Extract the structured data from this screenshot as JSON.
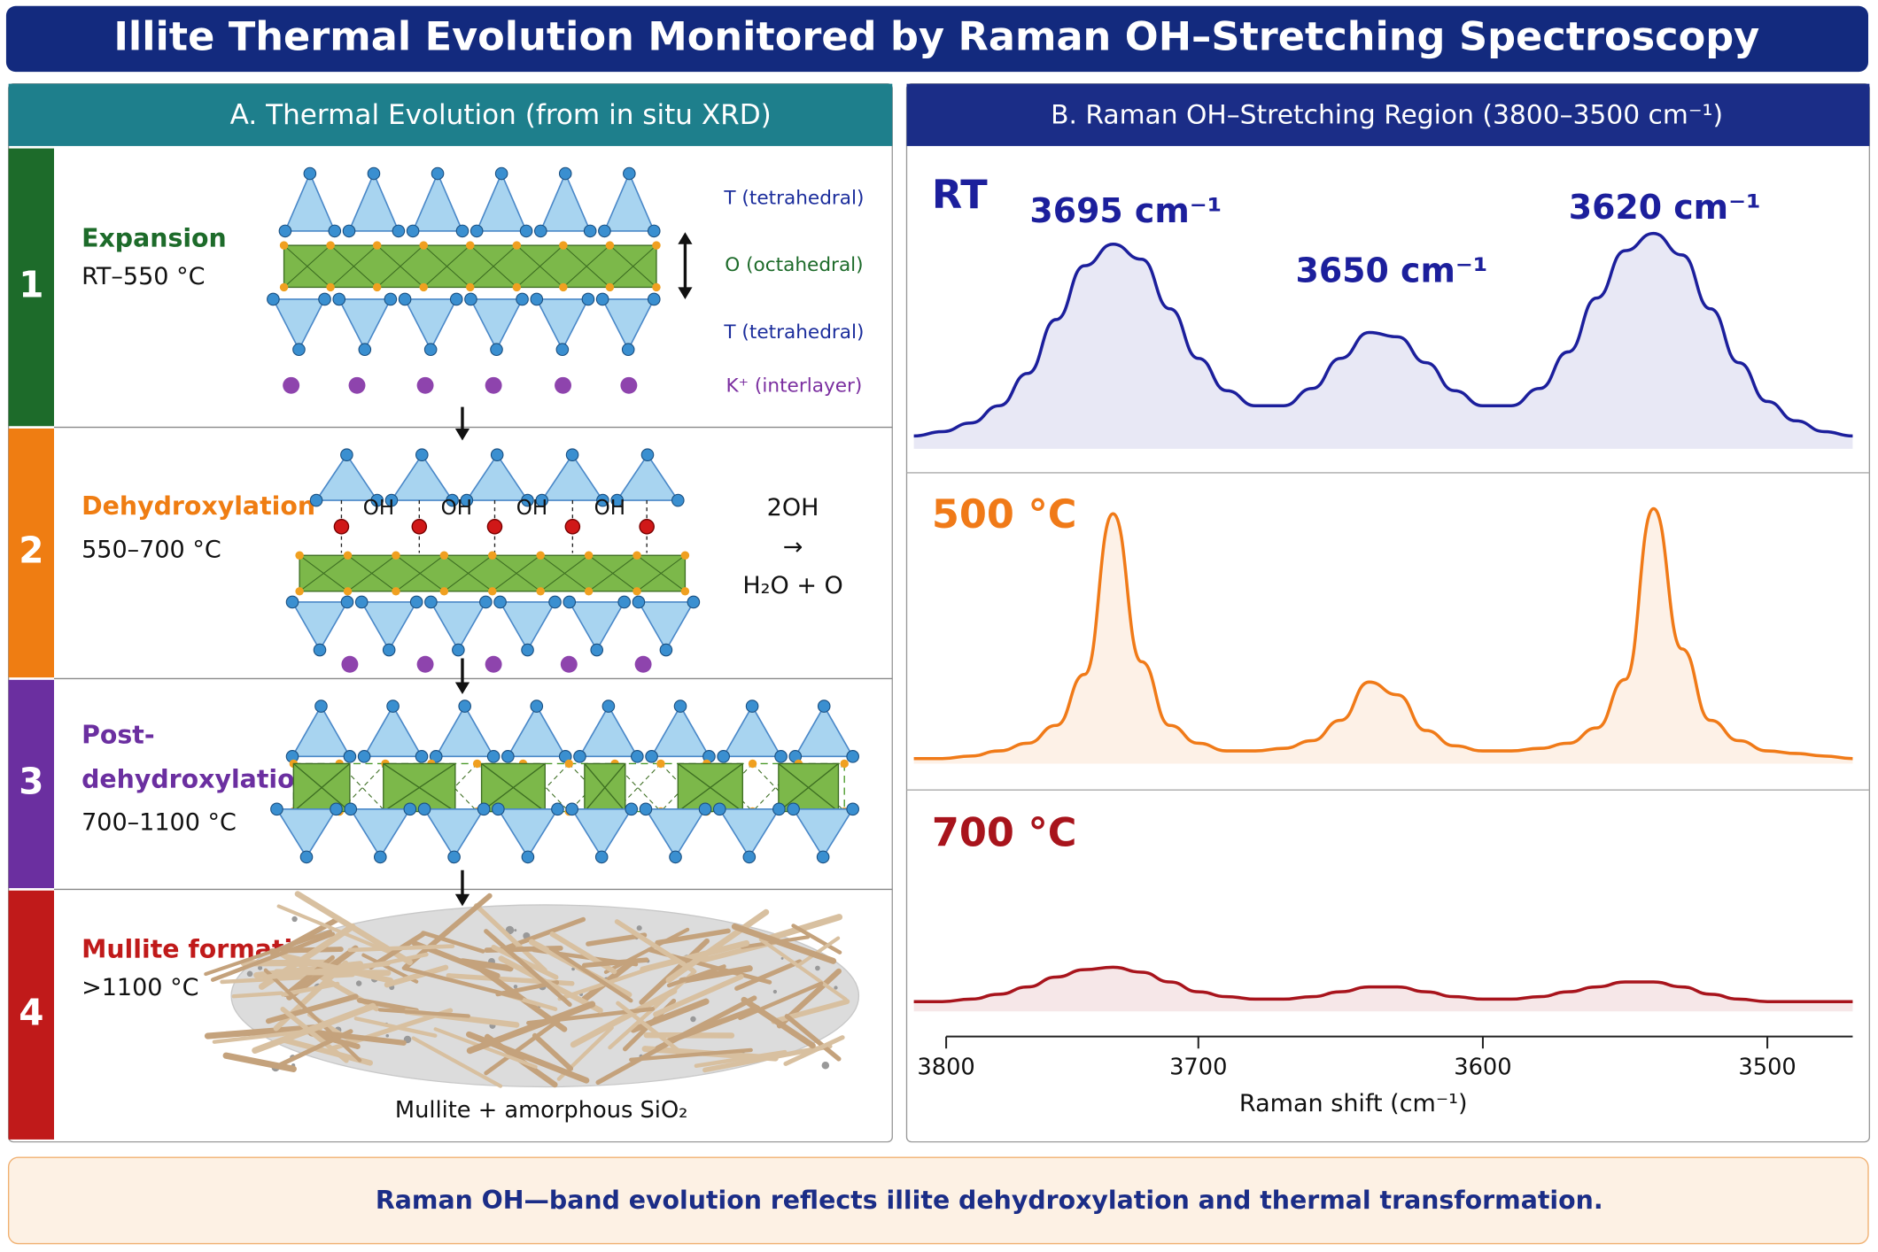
{
  "title": "Illite Thermal Evolution Monitored by Raman OH–Stretching Spectroscopy",
  "panel_a": {
    "title": "A. Thermal Evolution (from in situ XRD)",
    "stages": [
      {
        "number": "1",
        "name": [
          "Expansion"
        ],
        "range": "RT–550 °C",
        "color": "#1d6b2a"
      },
      {
        "number": "2",
        "name": [
          "Dehydroxylation"
        ],
        "range": "550–700 °C",
        "color": "#ef7d12"
      },
      {
        "number": "3",
        "name": [
          "Post-",
          "dehydroxylation"
        ],
        "range": "700–1100 °C",
        "color": "#6b2fa0"
      },
      {
        "number": "4",
        "name": [
          "Mullite formation"
        ],
        "range": ">1100 °C",
        "color": "#c01a1a"
      }
    ],
    "layer_labels": [
      "T (tetrahedral)",
      "O (octahedral)",
      "T (tetrahedral)",
      "K⁺ (interlayer)"
    ],
    "oh_labels": [
      "OH",
      "OH",
      "OH",
      "OH"
    ],
    "reaction": [
      "2OH",
      "→",
      "H₂O + O"
    ],
    "product": "Mullite + amorphous SiO₂"
  },
  "chart_data": {
    "type": "line",
    "title": "B. Raman OH–Stretching Region (3800–3500 cm⁻¹)",
    "xlabel": "Raman shift (cm⁻¹)",
    "xlim": [
      3800,
      3470
    ],
    "xticks": [
      3800,
      3700,
      3600,
      3500
    ],
    "ylim": [
      0,
      1
    ],
    "annotations": [
      "3695 cm⁻¹",
      "3650 cm⁻¹",
      "3620 cm⁻¹"
    ],
    "x": [
      3800,
      3790,
      3780,
      3770,
      3760,
      3750,
      3740,
      3730,
      3720,
      3710,
      3700,
      3690,
      3680,
      3670,
      3660,
      3650,
      3640,
      3630,
      3620,
      3610,
      3600,
      3590,
      3580,
      3570,
      3560,
      3550,
      3540,
      3530,
      3520,
      3510,
      3500,
      3490,
      3480,
      3470
    ],
    "series": [
      {
        "name": "RT",
        "color": "#1c1f9c",
        "values": [
          0.06,
          0.08,
          0.12,
          0.2,
          0.35,
          0.6,
          0.85,
          0.95,
          0.88,
          0.65,
          0.42,
          0.27,
          0.2,
          0.2,
          0.28,
          0.42,
          0.54,
          0.52,
          0.4,
          0.27,
          0.2,
          0.2,
          0.28,
          0.45,
          0.7,
          0.92,
          1.0,
          0.9,
          0.65,
          0.4,
          0.22,
          0.13,
          0.08,
          0.06
        ]
      },
      {
        "name": "500 °C",
        "color": "#f07a18",
        "values": [
          0.02,
          0.02,
          0.03,
          0.05,
          0.08,
          0.15,
          0.35,
          0.98,
          0.4,
          0.15,
          0.08,
          0.05,
          0.05,
          0.06,
          0.09,
          0.17,
          0.32,
          0.27,
          0.13,
          0.07,
          0.05,
          0.05,
          0.06,
          0.08,
          0.14,
          0.33,
          1.0,
          0.45,
          0.17,
          0.09,
          0.05,
          0.04,
          0.03,
          0.02
        ]
      },
      {
        "name": "700 °C",
        "color": "#a8141c",
        "values": [
          0.04,
          0.04,
          0.05,
          0.07,
          0.1,
          0.14,
          0.17,
          0.18,
          0.16,
          0.12,
          0.08,
          0.06,
          0.05,
          0.05,
          0.06,
          0.08,
          0.1,
          0.1,
          0.08,
          0.06,
          0.05,
          0.05,
          0.06,
          0.08,
          0.1,
          0.12,
          0.12,
          0.1,
          0.07,
          0.05,
          0.04,
          0.04,
          0.04,
          0.04
        ]
      }
    ]
  },
  "footer": "Raman OH—band evolution reflects illite dehydroxylation and thermal transformation."
}
